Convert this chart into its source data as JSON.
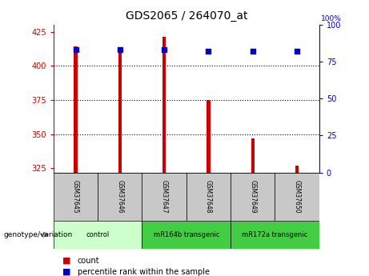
{
  "title": "GDS2065 / 264070_at",
  "samples": [
    "GSM37645",
    "GSM37646",
    "GSM37647",
    "GSM37648",
    "GSM37649",
    "GSM37650"
  ],
  "bar_values": [
    414,
    413,
    421,
    375,
    347,
    327
  ],
  "bar_base": 322,
  "percentile_values": [
    83,
    83,
    83,
    82,
    82,
    82
  ],
  "ylim_left": [
    322,
    430
  ],
  "yticks_left": [
    325,
    350,
    375,
    400,
    425
  ],
  "yticks_right": [
    0,
    25,
    50,
    75,
    100
  ],
  "bar_color": "#cc0000",
  "dot_color": "#0000cc",
  "bar_width": 0.08,
  "xlabel_area_color": "#c8c8c8",
  "group_colors": [
    "#ccffcc",
    "#44cc44",
    "#44cc44"
  ],
  "legend_count_color": "#cc0000",
  "legend_pct_color": "#0000cc",
  "axis_left_color": "#cc0000",
  "axis_right_color": "#0000cc",
  "group_labels": [
    "control",
    "mR164b transgenic",
    "mR172a transgenic"
  ],
  "group_starts": [
    0,
    2,
    4
  ],
  "group_ends": [
    2,
    4,
    6
  ]
}
